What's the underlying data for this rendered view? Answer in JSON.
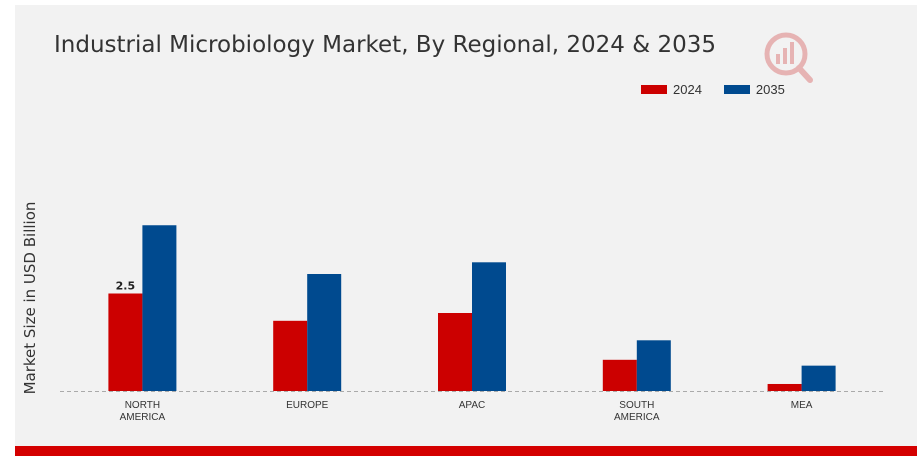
{
  "chart_data": {
    "type": "bar",
    "title": "Industrial Microbiology Market, By Regional, 2024 & 2035",
    "xlabel": "",
    "ylabel": "Market Size in USD Billion",
    "categories": [
      [
        "NORTH",
        "AMERICA"
      ],
      [
        "EUROPE"
      ],
      [
        "APAC"
      ],
      [
        "SOUTH",
        "AMERICA"
      ],
      [
        "MEA"
      ]
    ],
    "series": [
      {
        "name": "2024",
        "color": "#cc0000",
        "values": [
          2.5,
          1.8,
          2.0,
          0.8,
          0.18
        ]
      },
      {
        "name": "2035",
        "color": "#004a8f",
        "values": [
          4.25,
          3.0,
          3.3,
          1.3,
          0.65
        ]
      }
    ],
    "data_labels": [
      {
        "series": 0,
        "index": 0,
        "text": "2.5"
      }
    ],
    "ylim": [
      0,
      6
    ],
    "grid": false,
    "legend_position": "top-right",
    "baseline_style": "dashed"
  },
  "logo_icon": "market-research-logo-icon"
}
